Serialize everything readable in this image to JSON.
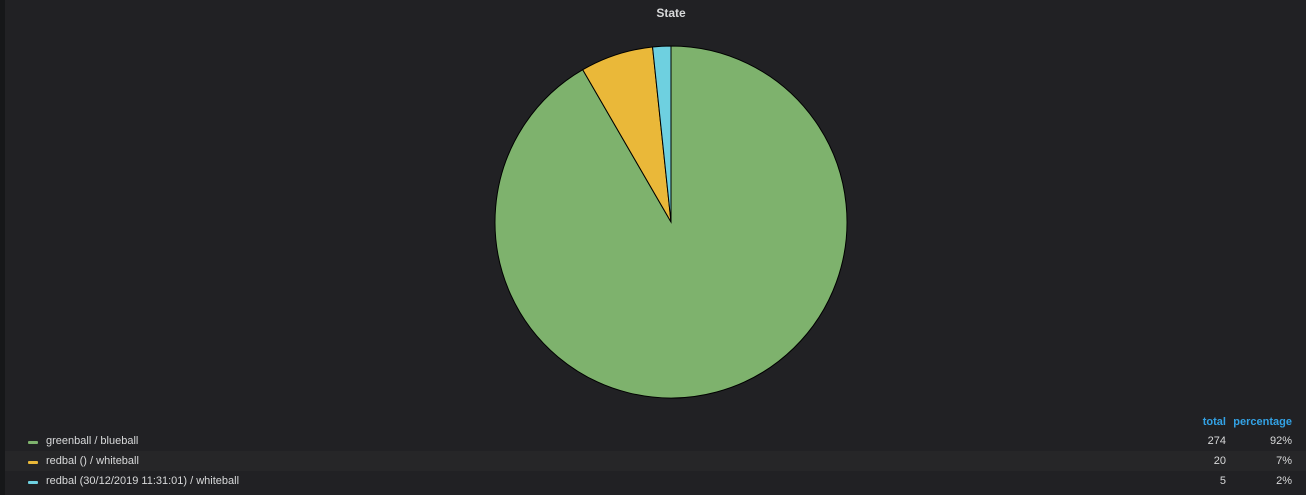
{
  "chart_data": {
    "type": "pie",
    "title": "State",
    "series": [
      {
        "name": "greenball / blueball",
        "color": "#7eb26d",
        "total": 274,
        "percentage": 92,
        "percentage_label": "92%"
      },
      {
        "name": "redbal () / whiteball",
        "color": "#eab839",
        "total": 20,
        "percentage": 7,
        "percentage_label": "7%"
      },
      {
        "name": "redbal (30/12/2019 11:31:01) / whiteball",
        "color": "#6ed0e0",
        "total": 5,
        "percentage": 2,
        "percentage_label": "2%"
      }
    ],
    "legend_columns": [
      "total",
      "percentage"
    ]
  }
}
